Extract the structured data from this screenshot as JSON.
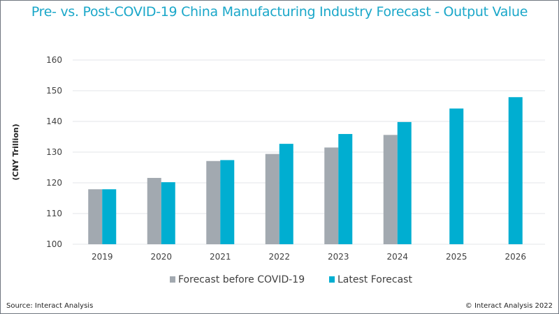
{
  "chart_data": {
    "type": "bar",
    "title": "Pre- vs. Post-COVID-19 China Manufacturing Industry Forecast - Output Value",
    "xlabel": "",
    "ylabel": "(CNY Trillion)",
    "ylim": [
      100,
      160
    ],
    "yticks": [
      100,
      110,
      120,
      130,
      140,
      150,
      160
    ],
    "grid": true,
    "legend_position": "bottom",
    "categories": [
      "2019",
      "2020",
      "2021",
      "2022",
      "2023",
      "2024",
      "2025",
      "2026"
    ],
    "series": [
      {
        "name": "Forecast before COVID-19",
        "color": "#a2a9b0",
        "values": [
          117.9,
          121.6,
          127.1,
          129.4,
          131.5,
          135.6,
          null,
          null
        ]
      },
      {
        "name": "Latest Forecast",
        "color": "#00aed1",
        "values": [
          117.9,
          120.2,
          127.4,
          132.7,
          135.9,
          139.8,
          144.2,
          147.9
        ]
      }
    ]
  },
  "footer": {
    "source": "Source: Interact Analysis",
    "copyright": "© Interact Analysis 2022"
  }
}
